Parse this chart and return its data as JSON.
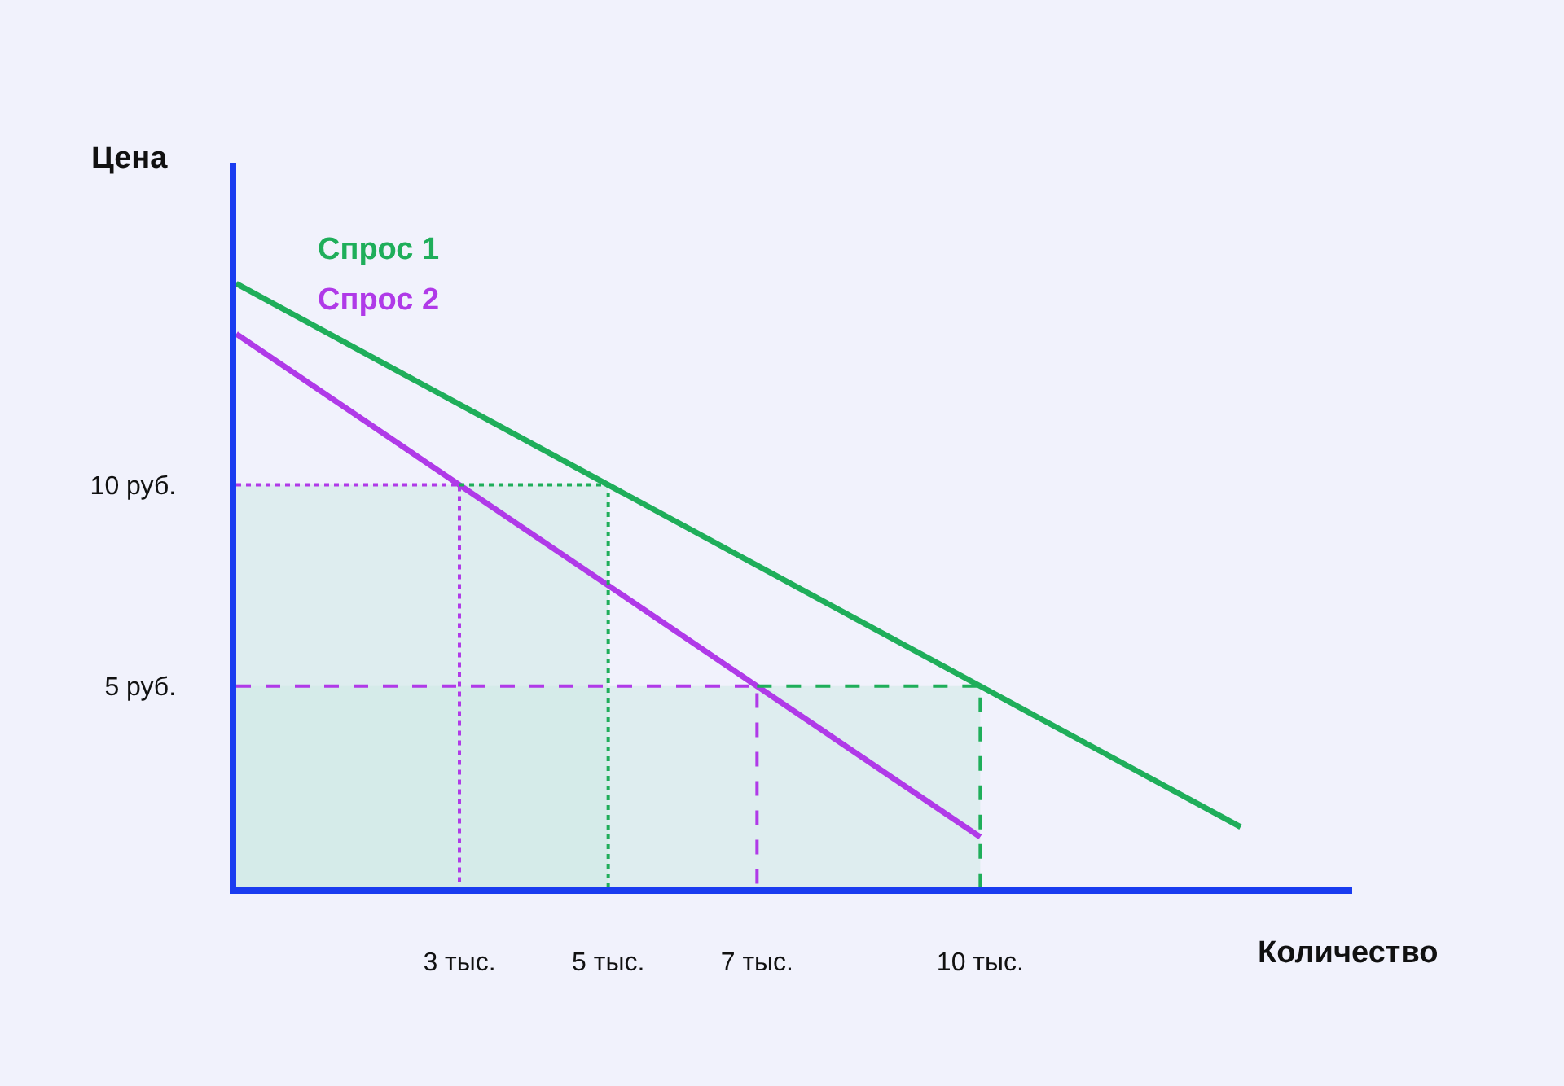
{
  "chart_data": {
    "type": "line",
    "xlabel": "Количество",
    "ylabel": "Цена",
    "xlim": [
      0,
      15
    ],
    "ylim": [
      0,
      18
    ],
    "xticks": [
      {
        "value": 3,
        "label": "3 тыс."
      },
      {
        "value": 5,
        "label": "5 тыс."
      },
      {
        "value": 7,
        "label": "7 тыс."
      },
      {
        "value": 10,
        "label": "10 тыс."
      }
    ],
    "yticks": [
      {
        "value": 5,
        "label": "5 руб."
      },
      {
        "value": 10,
        "label": "10 руб."
      }
    ],
    "grid": false,
    "legend": false,
    "marker": "none",
    "series": [
      {
        "name": "Спрос 1",
        "line_style": "solid",
        "color": "#1fae5a",
        "x": [
          0,
          5,
          10,
          13.5
        ],
        "values": [
          15,
          10,
          5,
          1.5
        ]
      },
      {
        "name": "Спрос 2",
        "line_style": "solid",
        "color": "#b03ae8",
        "x": [
          0,
          3,
          7,
          10
        ],
        "values": [
          13.75,
          10,
          5,
          1.25
        ]
      },
      {
        "line_style": "dotted",
        "color": "#b03ae8",
        "x": [
          0,
          3,
          3
        ],
        "values": [
          10,
          10,
          0
        ]
      },
      {
        "line_style": "dotted",
        "color": "#1fae5a",
        "x": [
          3,
          5,
          5
        ],
        "values": [
          10,
          10,
          0
        ]
      },
      {
        "line_style": "dashed",
        "color": "#b03ae8",
        "x": [
          0,
          7,
          7
        ],
        "values": [
          5,
          5,
          0
        ]
      },
      {
        "line_style": "dashed",
        "color": "#1fae5a",
        "x": [
          7,
          10,
          10
        ],
        "values": [
          5,
          5,
          0
        ]
      },
      {
        "type": "area",
        "color": "#cde9e4",
        "x": [
          0,
          5
        ],
        "values": [
          10,
          10
        ]
      },
      {
        "type": "area",
        "color": "#cde9e4",
        "x": [
          0,
          10
        ],
        "values": [
          5,
          5
        ]
      }
    ]
  }
}
